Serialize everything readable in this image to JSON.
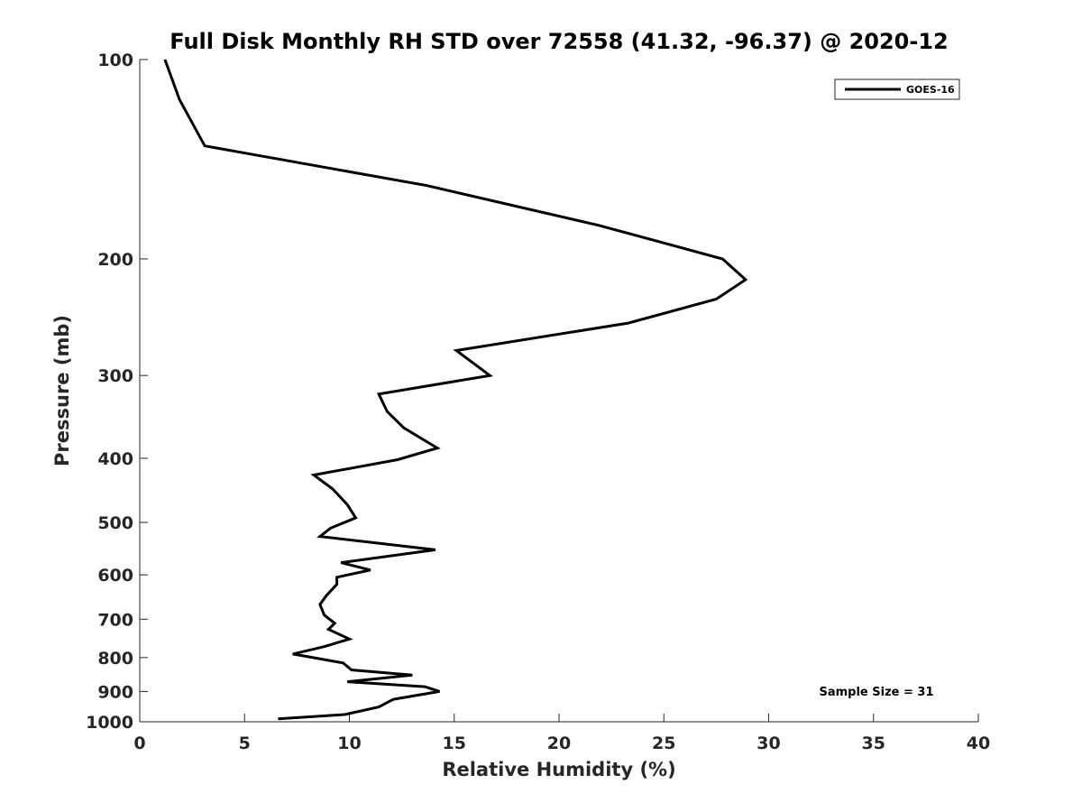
{
  "chart_data": {
    "type": "line",
    "title": "Full Disk Monthly RH STD over 72558 (41.32, -96.37) @ 2020-12",
    "xlabel": "Relative Humidity (%)",
    "ylabel": "Pressure (mb)",
    "xlim": [
      0,
      40
    ],
    "ylim": [
      100,
      1000
    ],
    "y_scale": "log",
    "y_reversed": true,
    "x_ticks": [
      0,
      5,
      10,
      15,
      20,
      25,
      30,
      35,
      40
    ],
    "y_ticks": [
      100,
      200,
      300,
      400,
      500,
      600,
      700,
      800,
      900,
      1000
    ],
    "grid": false,
    "legend": {
      "placement": "top-right",
      "entries": [
        "GOES-16"
      ]
    },
    "annotation": "Sample Size = 31",
    "series": [
      {
        "name": "GOES-16",
        "color": "#000000",
        "points": [
          [
            1.2,
            100
          ],
          [
            1.9,
            115
          ],
          [
            3.1,
            135
          ],
          [
            13.7,
            155
          ],
          [
            21.9,
            178
          ],
          [
            27.8,
            200
          ],
          [
            28.9,
            215
          ],
          [
            27.5,
            230
          ],
          [
            23.3,
            250
          ],
          [
            15.1,
            275
          ],
          [
            16.7,
            300
          ],
          [
            11.4,
            320
          ],
          [
            11.8,
            340
          ],
          [
            12.6,
            360
          ],
          [
            14.2,
            386
          ],
          [
            12.3,
            402
          ],
          [
            8.3,
            424
          ],
          [
            9.2,
            445
          ],
          [
            9.9,
            470
          ],
          [
            10.3,
            492
          ],
          [
            9.1,
            510
          ],
          [
            8.6,
            525
          ],
          [
            14.1,
            550
          ],
          [
            9.6,
            575
          ],
          [
            11.0,
            590
          ],
          [
            9.4,
            605
          ],
          [
            9.4,
            620
          ],
          [
            8.9,
            645
          ],
          [
            8.6,
            665
          ],
          [
            8.8,
            690
          ],
          [
            9.3,
            710
          ],
          [
            9.0,
            725
          ],
          [
            10.0,
            750
          ],
          [
            8.8,
            770
          ],
          [
            7.3,
            790
          ],
          [
            9.7,
            815
          ],
          [
            10.1,
            835
          ],
          [
            13.0,
            850
          ],
          [
            9.9,
            870
          ],
          [
            13.6,
            885
          ],
          [
            14.3,
            900
          ],
          [
            12.1,
            925
          ],
          [
            11.4,
            950
          ],
          [
            9.8,
            975
          ],
          [
            6.6,
            990
          ]
        ]
      }
    ]
  }
}
